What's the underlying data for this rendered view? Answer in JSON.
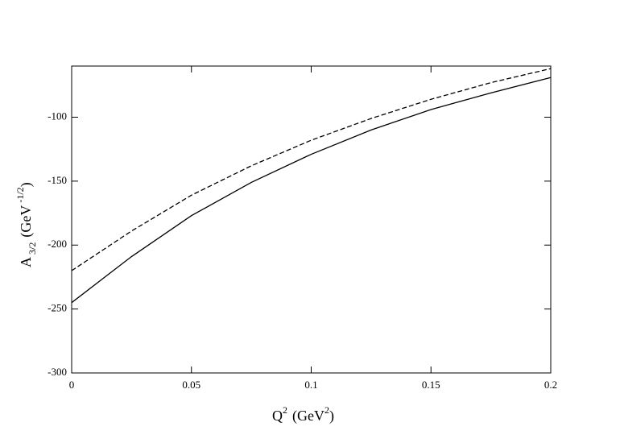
{
  "chart_data": {
    "type": "line",
    "x": [
      0,
      0.025,
      0.05,
      0.075,
      0.1,
      0.125,
      0.15,
      0.175,
      0.2
    ],
    "series": [
      {
        "color": "#000000",
        "line_style": "solid",
        "values": [
          -245,
          -209,
          -177,
          -151,
          -129,
          -110,
          -94,
          -81,
          -69
        ]
      },
      {
        "color": "#000000",
        "line_style": "dashed",
        "values": [
          -220,
          -189,
          -161,
          -138,
          -118,
          -101,
          -86,
          -73,
          -62
        ]
      }
    ],
    "xlim": [
      0,
      0.2
    ],
    "xticks": [
      0,
      0.05,
      0.1,
      0.15,
      0.2
    ],
    "ylim": [
      -300,
      -60
    ],
    "yticks": [
      -300,
      -250,
      -200,
      -150,
      -100
    ],
    "xlabel": {
      "base": "Q",
      "sup": "2",
      "unit": "(GeV",
      "unit_sup": "2",
      "close": ")"
    },
    "ylabel": {
      "base": "A",
      "sub": "3/2",
      "unit": "(GeV",
      "unit_sup": "-1/2",
      "close": ")"
    }
  }
}
